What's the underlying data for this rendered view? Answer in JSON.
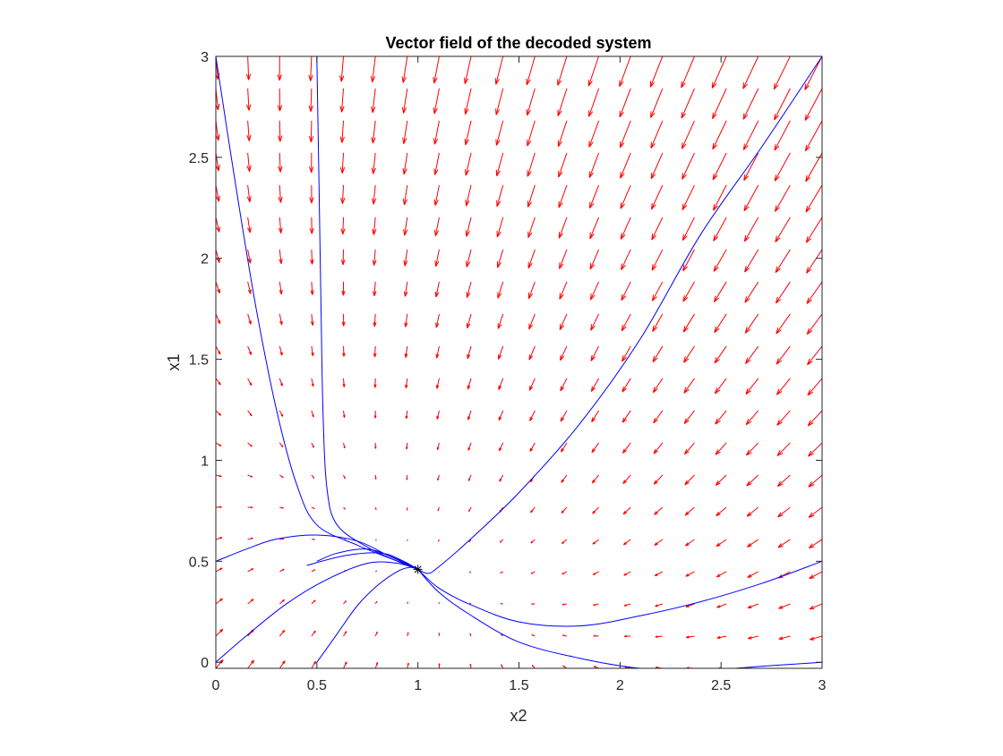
{
  "chart_data": {
    "type": "quiver",
    "title": "Vector field of the decoded system",
    "xlabel": "x2",
    "ylabel": "x1",
    "xlim": [
      0,
      3
    ],
    "ylim": [
      -0.03,
      3
    ],
    "x_ticks": [
      0,
      0.5,
      1,
      1.5,
      2,
      2.5,
      3
    ],
    "x_tick_labels": [
      "0",
      "0.5",
      "1",
      "1.5",
      "2",
      "2.5",
      "3"
    ],
    "y_ticks": [
      0,
      0.5,
      1,
      1.5,
      2,
      2.5,
      3
    ],
    "y_tick_labels": [
      "0",
      "0.5",
      "1",
      "1.5",
      "2",
      "2.5",
      "3"
    ],
    "grid": false,
    "colors": {
      "arrows": "#ff0000",
      "trajectories": "#0000ff",
      "equilibrium": "#000000",
      "axes": "#262626"
    },
    "vector_field": {
      "x_range": [
        0,
        3
      ],
      "x_step": 0.1579,
      "y_range": [
        -0.03,
        3
      ],
      "y_step": 0.1595,
      "equilibrium": [
        1,
        0.46
      ],
      "description_of_flow": "linear-like stable node centered at equilibrium"
    },
    "equilibrium_point": {
      "x": 1,
      "y": 0.46,
      "marker": "*"
    },
    "series": [
      {
        "points": [
          [
            0,
            3
          ],
          [
            0.1,
            2.35
          ],
          [
            0.2,
            1.75
          ],
          [
            0.3,
            1.25
          ],
          [
            0.4,
            0.88
          ],
          [
            0.5,
            0.68
          ],
          [
            0.7,
            0.58
          ],
          [
            0.9,
            0.5
          ],
          [
            1,
            0.46
          ]
        ]
      },
      {
        "points": [
          [
            0.5,
            3
          ],
          [
            0.51,
            2.4
          ],
          [
            0.52,
            1.8
          ],
          [
            0.53,
            1.25
          ],
          [
            0.55,
            0.86
          ],
          [
            0.6,
            0.68
          ],
          [
            0.75,
            0.57
          ],
          [
            0.9,
            0.5
          ],
          [
            1,
            0.46
          ]
        ]
      },
      {
        "points": [
          [
            0,
            0.5
          ],
          [
            0.15,
            0.56
          ],
          [
            0.3,
            0.61
          ],
          [
            0.5,
            0.63
          ],
          [
            0.7,
            0.6
          ],
          [
            0.85,
            0.53
          ],
          [
            1,
            0.46
          ]
        ]
      },
      {
        "points": [
          [
            0.5,
            0.5
          ],
          [
            0.6,
            0.54
          ],
          [
            0.75,
            0.56
          ],
          [
            0.9,
            0.51
          ],
          [
            1,
            0.46
          ]
        ]
      },
      {
        "points": [
          [
            0.45,
            0.48
          ],
          [
            0.65,
            0.53
          ],
          [
            0.82,
            0.54
          ],
          [
            0.93,
            0.5
          ],
          [
            1,
            0.46
          ]
        ]
      },
      {
        "points": [
          [
            0,
            0
          ],
          [
            0.15,
            0.13
          ],
          [
            0.35,
            0.29
          ],
          [
            0.55,
            0.41
          ],
          [
            0.75,
            0.49
          ],
          [
            0.9,
            0.49
          ],
          [
            1,
            0.46
          ]
        ]
      },
      {
        "points": [
          [
            0.5,
            0
          ],
          [
            0.6,
            0.14
          ],
          [
            0.7,
            0.28
          ],
          [
            0.8,
            0.38
          ],
          [
            0.9,
            0.45
          ],
          [
            0.96,
            0.47
          ],
          [
            1,
            0.46
          ]
        ]
      },
      {
        "points": [
          [
            3,
            3
          ],
          [
            2.7,
            2.55
          ],
          [
            2.4,
            2.12
          ],
          [
            2.1,
            1.6
          ],
          [
            1.8,
            1.18
          ],
          [
            1.5,
            0.84
          ],
          [
            1.25,
            0.6
          ],
          [
            1.1,
            0.47
          ],
          [
            1.05,
            0.44
          ],
          [
            1,
            0.46
          ]
        ]
      },
      {
        "points": [
          [
            3,
            0.5
          ],
          [
            2.7,
            0.39
          ],
          [
            2.4,
            0.3
          ],
          [
            2.1,
            0.23
          ],
          [
            1.8,
            0.18
          ],
          [
            1.5,
            0.2
          ],
          [
            1.25,
            0.29
          ],
          [
            1.1,
            0.37
          ],
          [
            1,
            0.46
          ]
        ]
      },
      {
        "points": [
          [
            3,
            0
          ],
          [
            2.7,
            -0.02
          ],
          [
            2.4,
            -0.04
          ],
          [
            2.1,
            -0.03
          ],
          [
            1.8,
            0.02
          ],
          [
            1.5,
            0.1
          ],
          [
            1.25,
            0.24
          ],
          [
            1.1,
            0.35
          ],
          [
            1,
            0.46
          ]
        ]
      }
    ]
  }
}
